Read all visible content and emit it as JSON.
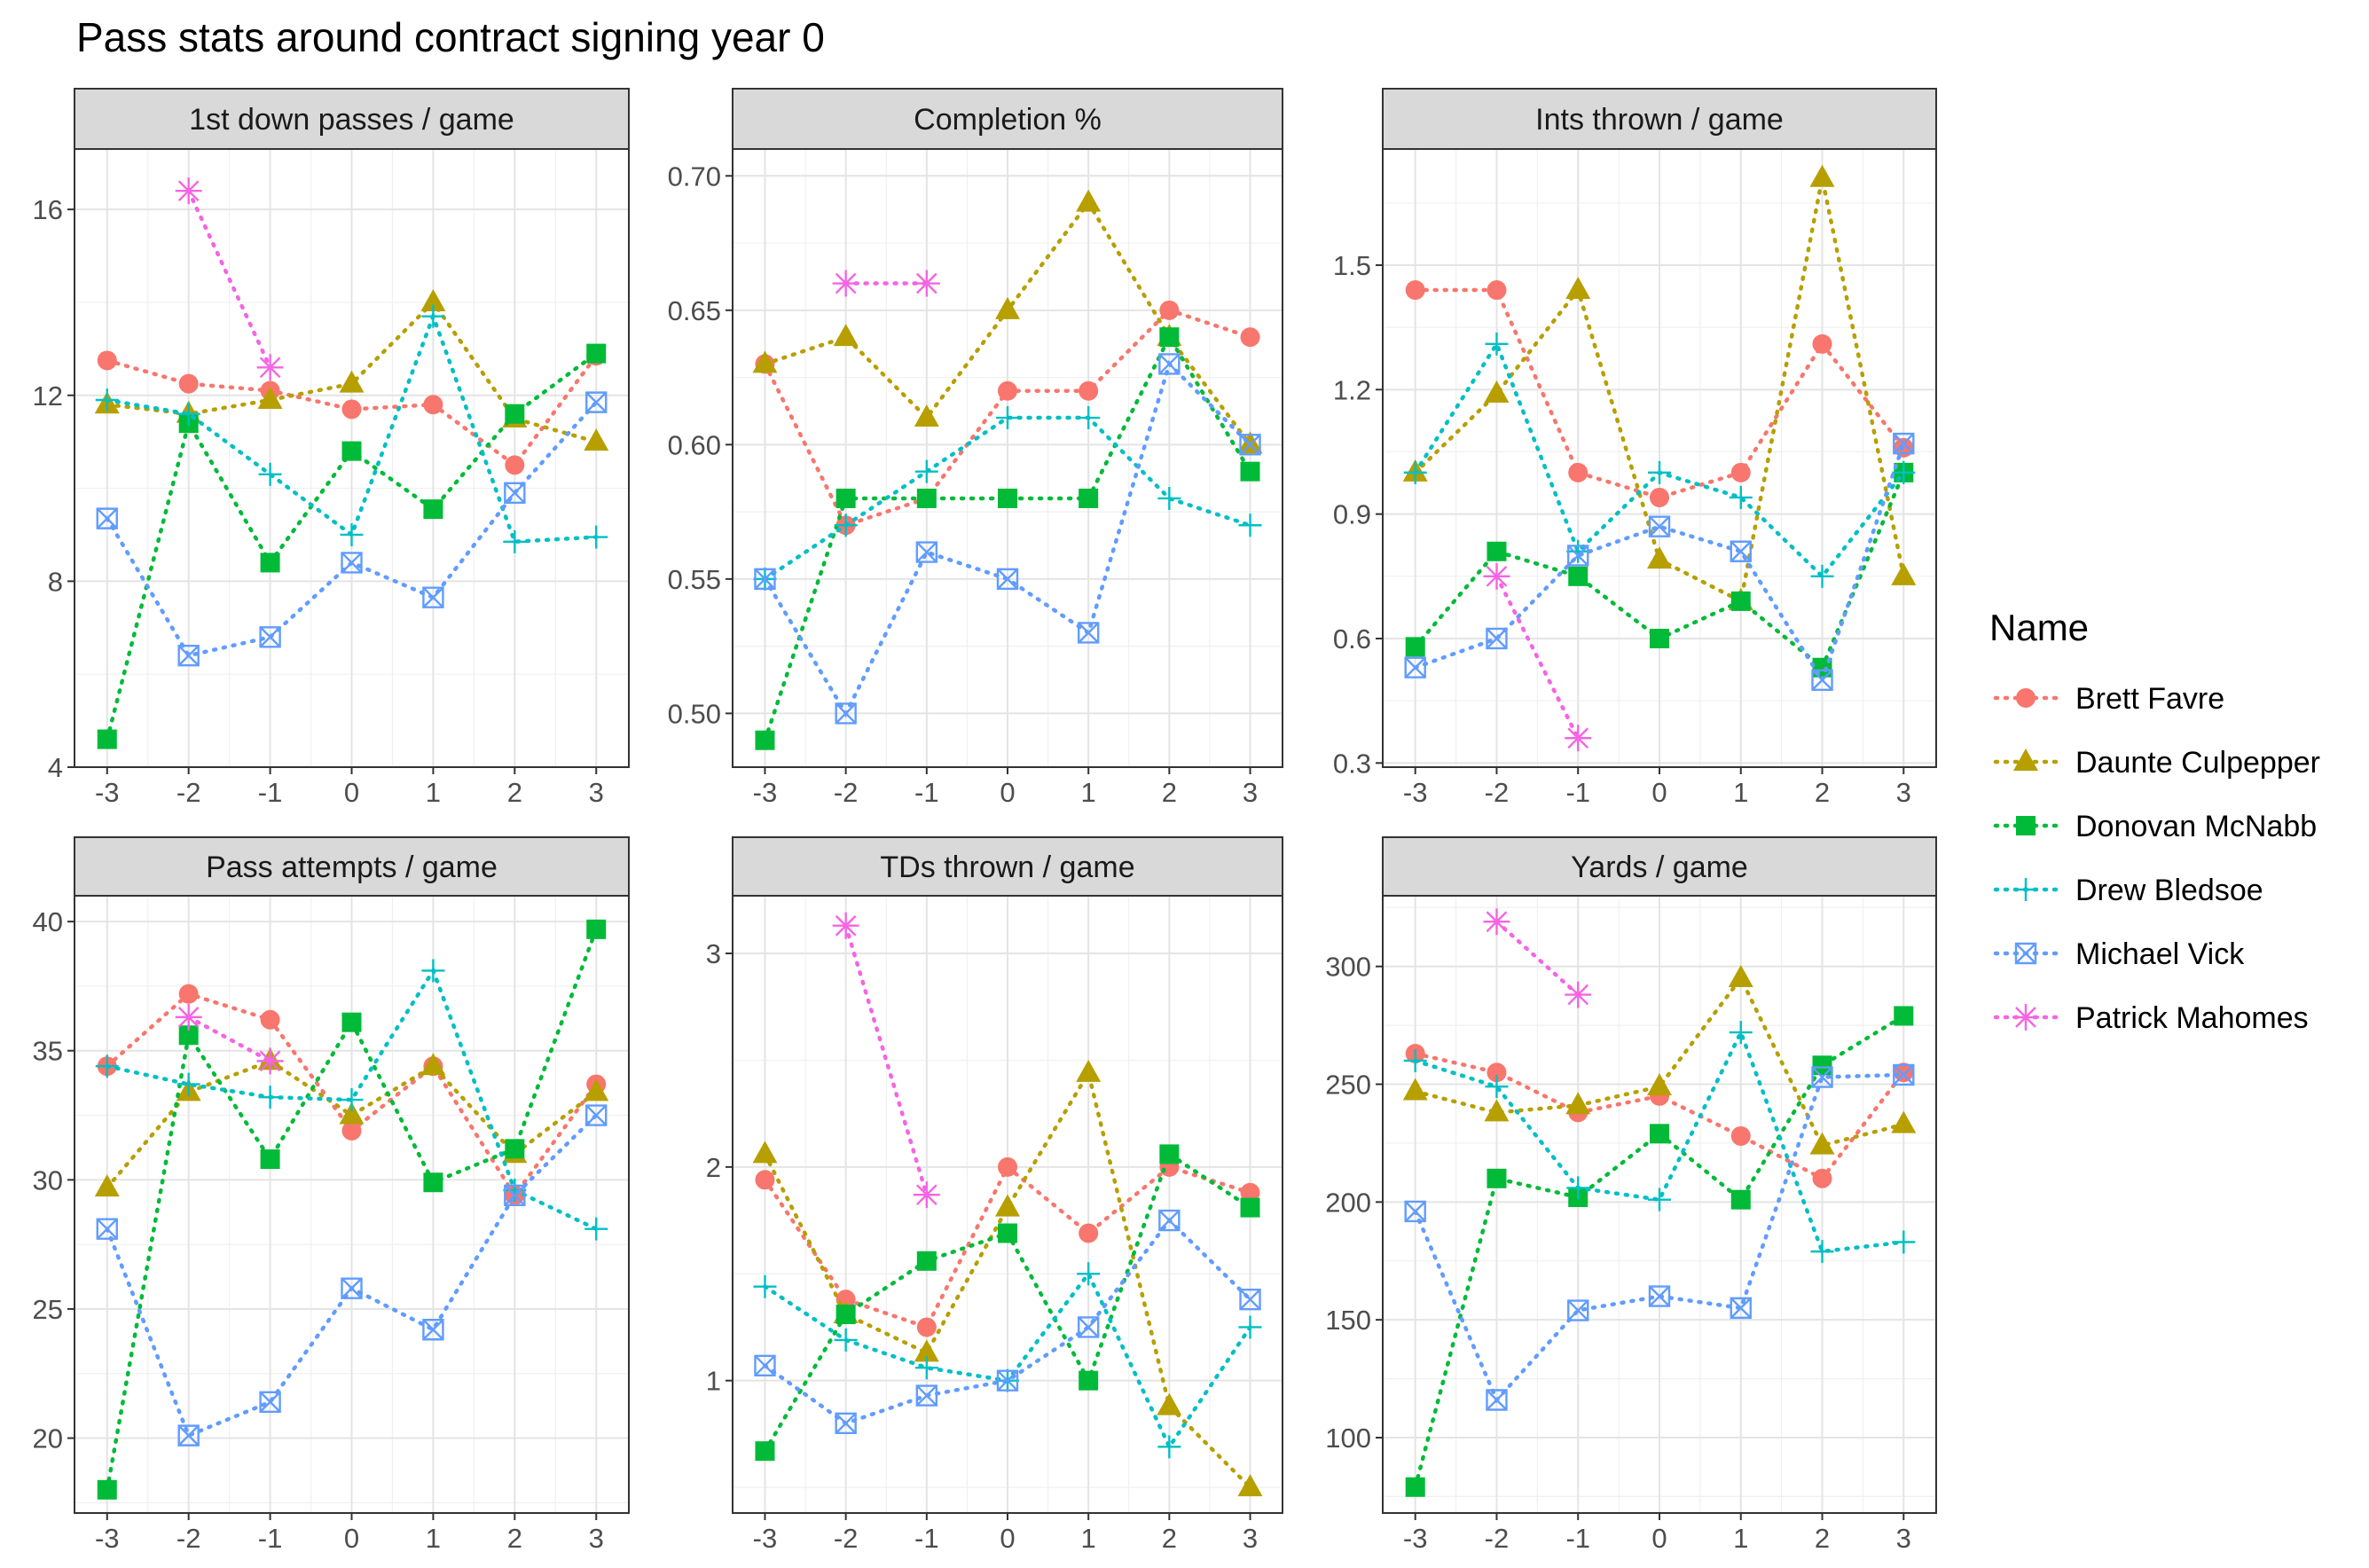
{
  "title": "Pass stats around contract signing year 0",
  "legend": {
    "title": "Name",
    "position": "right"
  },
  "colors": {
    "Brett Favre": "#F8766D",
    "Daunte Culpepper": "#B79F00",
    "Donovan McNabb": "#00BA38",
    "Drew Bledsoe": "#00BFC4",
    "Michael Vick": "#619CFF",
    "Patrick Mahomes": "#F564E3"
  },
  "shapes": {
    "Brett Favre": "circle",
    "Daunte Culpepper": "triangle",
    "Donovan McNabb": "square",
    "Drew Bledsoe": "plus",
    "Michael Vick": "boxed-x",
    "Patrick Mahomes": "asterisk"
  },
  "chart_data": [
    {
      "type": "line",
      "title": "1st down passes / game",
      "x": [
        -3,
        -2,
        -1,
        0,
        1,
        2,
        3
      ],
      "x_tick_labels": [
        "-3",
        "-2",
        "-1",
        "0",
        "1",
        "2",
        "3"
      ],
      "ylim": [
        4,
        17.3
      ],
      "yticks": [
        4,
        8,
        12,
        16
      ],
      "y_tick_labels": [
        "4",
        "8",
        "12",
        "16"
      ],
      "grid": true,
      "series": [
        {
          "name": "Brett Favre",
          "values": [
            12.75,
            12.25,
            12.1,
            11.7,
            11.8,
            10.5,
            12.85
          ]
        },
        {
          "name": "Daunte Culpepper",
          "values": [
            11.8,
            11.6,
            11.9,
            12.25,
            14.0,
            11.5,
            11.0
          ]
        },
        {
          "name": "Donovan McNabb",
          "values": [
            4.6,
            11.4,
            8.4,
            10.8,
            9.55,
            11.6,
            12.9
          ]
        },
        {
          "name": "Drew Bledsoe",
          "values": [
            11.9,
            11.6,
            10.3,
            9.0,
            13.7,
            8.85,
            8.95
          ]
        },
        {
          "name": "Michael Vick",
          "values": [
            9.35,
            6.4,
            6.8,
            8.4,
            7.65,
            9.9,
            11.85
          ]
        },
        {
          "name": "Patrick Mahomes",
          "values": [
            null,
            16.4,
            12.6,
            null,
            null,
            null,
            null
          ]
        }
      ]
    },
    {
      "type": "line",
      "title": "Completion %",
      "x": [
        -3,
        -2,
        -1,
        0,
        1,
        2,
        3
      ],
      "x_tick_labels": [
        "-3",
        "-2",
        "-1",
        "0",
        "1",
        "2",
        "3"
      ],
      "ylim": [
        0.48,
        0.71
      ],
      "yticks": [
        0.5,
        0.55,
        0.6,
        0.65,
        0.7
      ],
      "y_tick_labels": [
        "0.50",
        "0.55",
        "0.60",
        "0.65",
        "0.70"
      ],
      "grid": true,
      "series": [
        {
          "name": "Brett Favre",
          "values": [
            0.63,
            0.57,
            0.58,
            0.62,
            0.62,
            0.65,
            0.64
          ]
        },
        {
          "name": "Daunte Culpepper",
          "values": [
            0.63,
            0.64,
            0.61,
            0.65,
            0.69,
            0.64,
            0.6
          ]
        },
        {
          "name": "Donovan McNabb",
          "values": [
            0.49,
            0.58,
            0.58,
            0.58,
            0.58,
            0.64,
            0.59
          ]
        },
        {
          "name": "Drew Bledsoe",
          "values": [
            0.55,
            0.57,
            0.59,
            0.61,
            0.61,
            0.58,
            0.57
          ]
        },
        {
          "name": "Michael Vick",
          "values": [
            0.55,
            0.5,
            0.56,
            0.55,
            0.53,
            0.63,
            0.6
          ]
        },
        {
          "name": "Patrick Mahomes",
          "values": [
            null,
            0.66,
            0.66,
            null,
            null,
            null,
            null
          ]
        }
      ]
    },
    {
      "type": "line",
      "title": "Ints thrown / game",
      "x": [
        -3,
        -2,
        -1,
        0,
        1,
        2,
        3
      ],
      "x_tick_labels": [
        "-3",
        "-2",
        "-1",
        "0",
        "1",
        "2",
        "3"
      ],
      "ylim": [
        0.29,
        1.78
      ],
      "yticks": [
        0.3,
        0.6,
        0.9,
        1.2,
        1.5
      ],
      "y_tick_labels": [
        "0.3",
        "0.6",
        "0.9",
        "1.2",
        "1.5"
      ],
      "grid": true,
      "series": [
        {
          "name": "Brett Favre",
          "values": [
            1.44,
            1.44,
            1.0,
            0.94,
            1.0,
            1.31,
            1.06
          ]
        },
        {
          "name": "Daunte Culpepper",
          "values": [
            1.0,
            1.19,
            1.44,
            0.79,
            0.69,
            1.71,
            0.75
          ]
        },
        {
          "name": "Donovan McNabb",
          "values": [
            0.58,
            0.81,
            0.75,
            0.6,
            0.69,
            0.53,
            1.0
          ]
        },
        {
          "name": "Drew Bledsoe",
          "values": [
            1.0,
            1.31,
            0.81,
            1.0,
            0.94,
            0.75,
            1.0
          ]
        },
        {
          "name": "Michael Vick",
          "values": [
            0.53,
            0.6,
            0.8,
            0.87,
            0.81,
            0.5,
            1.07
          ]
        },
        {
          "name": "Patrick Mahomes",
          "values": [
            null,
            0.75,
            0.36,
            null,
            null,
            null,
            null
          ]
        }
      ]
    },
    {
      "type": "line",
      "title": "Pass attempts / game",
      "x": [
        -3,
        -2,
        -1,
        0,
        1,
        2,
        3
      ],
      "x_tick_labels": [
        "-3",
        "-2",
        "-1",
        "0",
        "1",
        "2",
        "3"
      ],
      "ylim": [
        17.1,
        41.0
      ],
      "yticks": [
        20,
        25,
        30,
        35,
        40
      ],
      "y_tick_labels": [
        "20",
        "25",
        "30",
        "35",
        "40"
      ],
      "grid": true,
      "series": [
        {
          "name": "Brett Favre",
          "values": [
            34.4,
            37.2,
            36.2,
            31.9,
            34.4,
            29.4,
            33.7
          ]
        },
        {
          "name": "Daunte Culpepper",
          "values": [
            29.7,
            33.4,
            34.6,
            32.5,
            34.4,
            31.0,
            33.4
          ]
        },
        {
          "name": "Donovan McNabb",
          "values": [
            18.0,
            35.6,
            30.8,
            36.1,
            29.9,
            31.2,
            39.7
          ]
        },
        {
          "name": "Drew Bledsoe",
          "values": [
            34.4,
            33.7,
            33.2,
            33.1,
            38.1,
            29.6,
            28.1
          ]
        },
        {
          "name": "Michael Vick",
          "values": [
            28.1,
            20.1,
            21.4,
            25.8,
            24.2,
            29.4,
            32.5
          ]
        },
        {
          "name": "Patrick Mahomes",
          "values": [
            null,
            36.3,
            34.6,
            null,
            null,
            null,
            null
          ]
        }
      ]
    },
    {
      "type": "line",
      "title": "TDs thrown / game",
      "x": [
        -3,
        -2,
        -1,
        0,
        1,
        2,
        3
      ],
      "x_tick_labels": [
        "-3",
        "-2",
        "-1",
        "0",
        "1",
        "2",
        "3"
      ],
      "ylim": [
        0.38,
        3.27
      ],
      "yticks": [
        1,
        2,
        3
      ],
      "y_tick_labels": [
        "1",
        "2",
        "3"
      ],
      "grid": true,
      "series": [
        {
          "name": "Brett Favre",
          "values": [
            1.94,
            1.38,
            1.25,
            2.0,
            1.69,
            2.0,
            1.88
          ]
        },
        {
          "name": "Daunte Culpepper",
          "values": [
            2.06,
            1.31,
            1.13,
            1.81,
            2.44,
            0.88,
            0.5
          ]
        },
        {
          "name": "Donovan McNabb",
          "values": [
            0.67,
            1.31,
            1.56,
            1.69,
            1.0,
            2.06,
            1.81
          ]
        },
        {
          "name": "Drew Bledsoe",
          "values": [
            1.44,
            1.19,
            1.06,
            1.0,
            1.5,
            0.69,
            1.25
          ]
        },
        {
          "name": "Michael Vick",
          "values": [
            1.07,
            0.8,
            0.93,
            1.0,
            1.25,
            1.75,
            1.38
          ]
        },
        {
          "name": "Patrick Mahomes",
          "values": [
            null,
            3.13,
            1.87,
            null,
            null,
            null,
            null
          ]
        }
      ]
    },
    {
      "type": "line",
      "title": "Yards / game",
      "x": [
        -3,
        -2,
        -1,
        0,
        1,
        2,
        3
      ],
      "x_tick_labels": [
        "-3",
        "-2",
        "-1",
        "0",
        "1",
        "2",
        "3"
      ],
      "ylim": [
        68,
        330
      ],
      "yticks": [
        100,
        150,
        200,
        250,
        300
      ],
      "y_tick_labels": [
        "100",
        "150",
        "200",
        "250",
        "300"
      ],
      "grid": true,
      "series": [
        {
          "name": "Brett Favre",
          "values": [
            263,
            255,
            238,
            245,
            228,
            210,
            255
          ]
        },
        {
          "name": "Daunte Culpepper",
          "values": [
            247,
            238,
            241,
            249,
            295,
            224,
            233
          ]
        },
        {
          "name": "Donovan McNabb",
          "values": [
            79,
            210,
            202,
            229,
            201,
            258,
            279
          ]
        },
        {
          "name": "Drew Bledsoe",
          "values": [
            260,
            249,
            206,
            201,
            272,
            179,
            183
          ]
        },
        {
          "name": "Michael Vick",
          "values": [
            196,
            116,
            154,
            160,
            155,
            253,
            254
          ]
        },
        {
          "name": "Patrick Mahomes",
          "values": [
            null,
            319,
            288,
            null,
            null,
            null,
            null
          ]
        }
      ]
    }
  ]
}
